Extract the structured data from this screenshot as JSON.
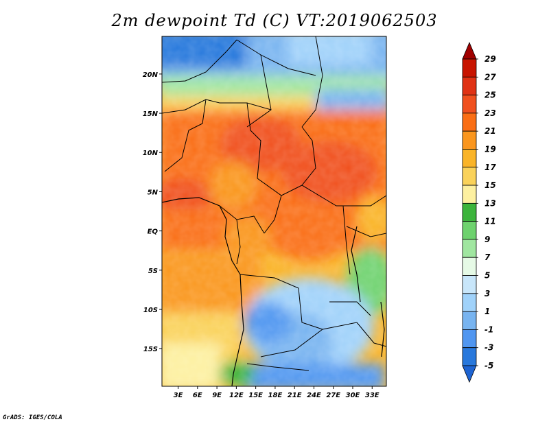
{
  "title": "2m dewpoint Td (C) VT:2019062503",
  "footer": "GrADS: IGES/COLA",
  "map": {
    "lat_labels": [
      {
        "label": "20N",
        "lat": 20
      },
      {
        "label": "15N",
        "lat": 15
      },
      {
        "label": "10N",
        "lat": 10
      },
      {
        "label": "5N",
        "lat": 5
      },
      {
        "label": "EQ",
        "lat": 0
      },
      {
        "label": "5S",
        "lat": -5
      },
      {
        "label": "10S",
        "lat": -10
      },
      {
        "label": "15S",
        "lat": -15
      }
    ],
    "lon_labels": [
      {
        "label": "3E",
        "lon": 3
      },
      {
        "label": "6E",
        "lon": 6
      },
      {
        "label": "9E",
        "lon": 9
      },
      {
        "label": "12E",
        "lon": 12
      },
      {
        "label": "15E",
        "lon": 15
      },
      {
        "label": "18E",
        "lon": 18
      },
      {
        "label": "21E",
        "lon": 21
      },
      {
        "label": "24E",
        "lon": 24
      },
      {
        "label": "27E",
        "lon": 27
      },
      {
        "label": "30E",
        "lon": 30
      },
      {
        "label": "33E",
        "lon": 33
      }
    ]
  },
  "colorbar": {
    "labels": [
      "29",
      "27",
      "25",
      "23",
      "21",
      "19",
      "17",
      "15",
      "13",
      "11",
      "9",
      "7",
      "5",
      "3",
      "1",
      "-1",
      "-3",
      "-5"
    ],
    "colors": [
      "#a00000",
      "#c81400",
      "#e03214",
      "#f0501e",
      "#fa6e14",
      "#fa961e",
      "#fab428",
      "#fad25a",
      "#fdf0a0",
      "#3cb43c",
      "#6ed26e",
      "#a0e6a0",
      "#e6fae6",
      "#c8e6fa",
      "#a0d2fa",
      "#78b4f0",
      "#5096f0",
      "#2878dc",
      "#1e64d2"
    ]
  }
}
